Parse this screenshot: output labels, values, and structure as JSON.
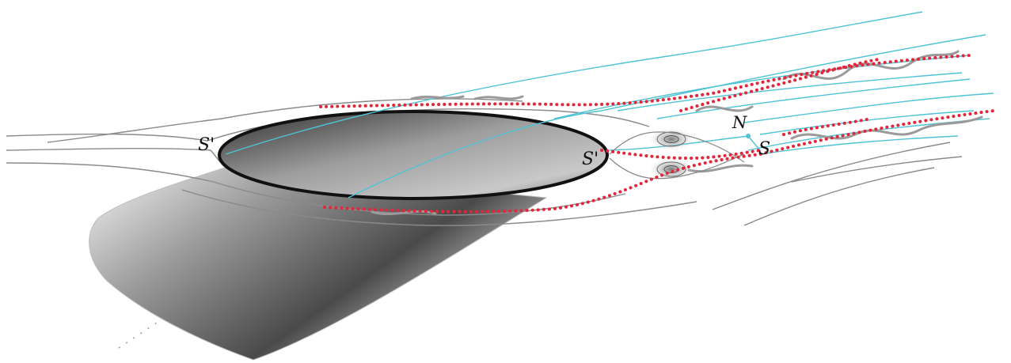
{
  "labels": {
    "s_prime_left": "S'",
    "s_prime_right": "S'",
    "node": "N",
    "saddle": "S"
  },
  "colors": {
    "background": "#ffffff",
    "ellipse_outline": "#111111",
    "streamline_gray": "#8a8a8a",
    "streamline_cyan": "#4fc3d6",
    "separation_red_dotted": "#e3263a",
    "body_shade_dark": "#3a3a3a",
    "body_shade_light": "#f4f4f4"
  }
}
